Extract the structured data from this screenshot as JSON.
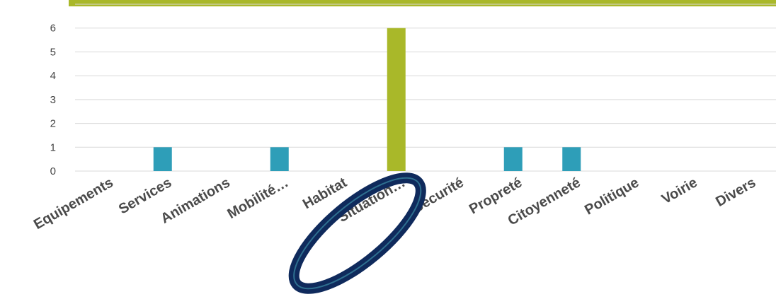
{
  "chart_data": {
    "type": "bar",
    "categories": [
      "Equipements",
      "Services",
      "Animations",
      "Mobilité…",
      "Habitat",
      "Situation…",
      "Sécurité",
      "Propreté",
      "Citoyenneté",
      "Politique",
      "Voirie",
      "Divers"
    ],
    "values": [
      0,
      1,
      0,
      1,
      0,
      6,
      0,
      1,
      1,
      0,
      0,
      0
    ],
    "highlight_category": "Situation…",
    "ylim": [
      0,
      7
    ],
    "yticks": [
      "0",
      "1",
      "2",
      "3",
      "4",
      "5",
      "6",
      "7"
    ],
    "grid": true,
    "colors": {
      "bar": "#2e9eb8",
      "highlight_bar": "#a9b829",
      "frame": "#a9b829",
      "ellipse_fill": "#0f2a5c",
      "ellipse_stroke": "#2e6f8f"
    }
  }
}
